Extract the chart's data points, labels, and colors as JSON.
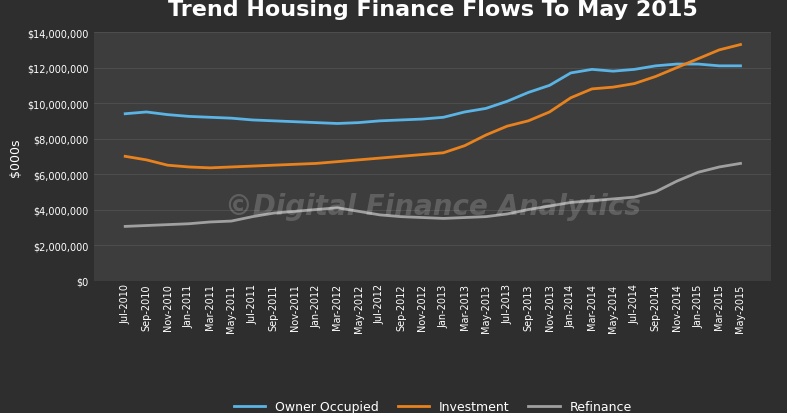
{
  "title": "Trend Housing Finance Flows To May 2015",
  "ylabel": "$000s",
  "watermark": "©Digital Finance Analytics",
  "background_color": "#2e2e2e",
  "plot_bg_color": "#3d3d3d",
  "grid_color": "#555555",
  "text_color": "#ffffff",
  "ylim": [
    0,
    14000000
  ],
  "yticks": [
    0,
    2000000,
    4000000,
    6000000,
    8000000,
    10000000,
    12000000,
    14000000
  ],
  "x_labels": [
    "Jul-2010",
    "Sep-2010",
    "Nov-2010",
    "Jan-2011",
    "Mar-2011",
    "May-2011",
    "Jul-2011",
    "Sep-2011",
    "Nov-2011",
    "Jan-2012",
    "Mar-2012",
    "May-2012",
    "Jul-2012",
    "Sep-2012",
    "Nov-2012",
    "Jan-2013",
    "Mar-2013",
    "May-2013",
    "Jul-2013",
    "Sep-2013",
    "Nov-2013",
    "Jan-2014",
    "Mar-2014",
    "May-2014",
    "Jul-2014",
    "Sep-2014",
    "Nov-2014",
    "Jan-2015",
    "Mar-2015",
    "May-2015"
  ],
  "owner_occupied": [
    9400000,
    9500000,
    9350000,
    9250000,
    9200000,
    9150000,
    9050000,
    9000000,
    8950000,
    8900000,
    8850000,
    8900000,
    9000000,
    9050000,
    9100000,
    9200000,
    9500000,
    9700000,
    10100000,
    10600000,
    11000000,
    11700000,
    11900000,
    11800000,
    11900000,
    12100000,
    12200000,
    12200000,
    12100000,
    12100000
  ],
  "investment": [
    7000000,
    6800000,
    6500000,
    6400000,
    6350000,
    6400000,
    6450000,
    6500000,
    6550000,
    6600000,
    6700000,
    6800000,
    6900000,
    7000000,
    7100000,
    7200000,
    7600000,
    8200000,
    8700000,
    9000000,
    9500000,
    10300000,
    10800000,
    10900000,
    11100000,
    11500000,
    12000000,
    12500000,
    13000000,
    13300000
  ],
  "refinance": [
    3050000,
    3100000,
    3150000,
    3200000,
    3300000,
    3350000,
    3600000,
    3800000,
    3900000,
    4000000,
    4100000,
    3900000,
    3700000,
    3600000,
    3550000,
    3500000,
    3550000,
    3600000,
    3750000,
    4000000,
    4200000,
    4400000,
    4500000,
    4600000,
    4700000,
    5000000,
    5600000,
    6100000,
    6400000,
    6600000
  ],
  "series_colors": {
    "owner_occupied": "#5ab4e5",
    "investment": "#e8821e",
    "refinance": "#a0a0a0"
  },
  "series_labels": {
    "owner_occupied": "Owner Occupied",
    "investment": "Investment",
    "refinance": "Refinance"
  },
  "line_width": 2.0,
  "title_fontsize": 16,
  "tick_label_fontsize": 7,
  "ylabel_fontsize": 9,
  "legend_fontsize": 9,
  "watermark_fontsize": 20,
  "watermark_alpha": 0.18
}
